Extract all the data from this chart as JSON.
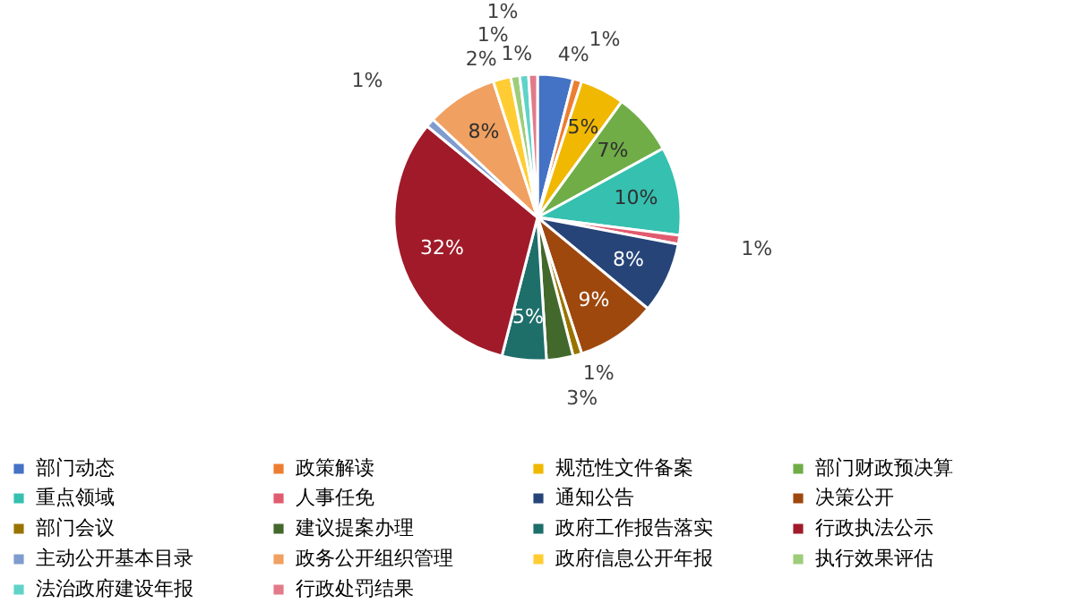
{
  "chart_data": {
    "type": "pie",
    "legend": "bottom",
    "data_labels": true,
    "categories": [
      "部门动态",
      "政策解读",
      "规范性文件备案",
      "部门财政预决算",
      "重点领域",
      "人事任免",
      "通知公告",
      "决策公开",
      "部门会议",
      "建议提案办理",
      "政府工作报告落实",
      "行政执法公示",
      "主动公开基本目录",
      "政务公开组织管理",
      "政府信息公开年报",
      "执行效果评估",
      "法治政府建设年报",
      "行政处罚结果"
    ],
    "values": [
      4,
      1,
      5,
      7,
      10,
      1,
      8,
      9,
      1,
      3,
      5,
      32,
      1,
      8,
      2,
      1,
      1,
      1
    ],
    "value_labels": [
      "4%",
      "1%",
      "5%",
      "7%",
      "10%",
      "1%",
      "8%",
      "9%",
      "1%",
      "3%",
      "5%",
      "32%",
      "1%",
      "8%",
      "2%",
      "1%",
      "1%",
      "1%"
    ],
    "colors": [
      "#4472c4",
      "#ed7d31",
      "#f0b800",
      "#70ad47",
      "#35c0b0",
      "#e15b6e",
      "#264478",
      "#9e480e",
      "#997300",
      "#43682b",
      "#1e6e6a",
      "#a01a2a",
      "#7f9ccf",
      "#f0a060",
      "#ffcd33",
      "#9dcd7a",
      "#5fd3c8",
      "#e27a8a"
    ]
  }
}
